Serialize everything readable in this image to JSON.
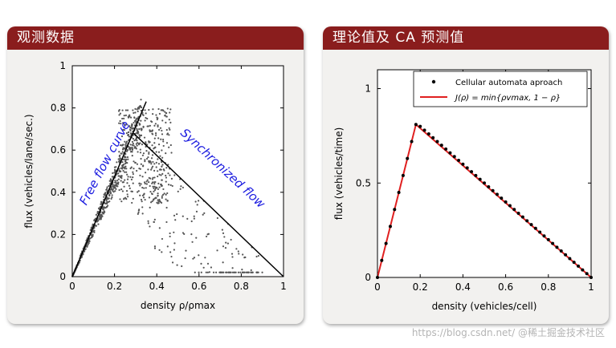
{
  "panels": {
    "left_title": "观测数据",
    "right_title": "理论值及 CA 预测值"
  },
  "chart_data": [
    {
      "type": "scatter",
      "title": "",
      "xlabel": "density ρ/ρmax",
      "ylabel": "flux (vehicles/lane/sec.)",
      "xlim": [
        0,
        1
      ],
      "ylim": [
        0,
        1
      ],
      "xticks": [
        "0",
        "0.2",
        "0.4",
        "0.6",
        "0.8",
        "1"
      ],
      "yticks": [
        "0",
        "0.2",
        "0.4",
        "0.6",
        "0.8",
        "1"
      ],
      "grid": false,
      "scatter_description_points": "observed flow-density measurements, dense band along free-flow line up to density ~0.35 then scattered below synchronized-flow line",
      "series": [
        {
          "name": "Free flow curve",
          "type": "line",
          "x": [
            0,
            0.35
          ],
          "y": [
            0,
            0.83
          ]
        },
        {
          "name": "Synchronized flow",
          "type": "line",
          "x": [
            0.29,
            1.0
          ],
          "y": [
            0.68,
            0
          ]
        }
      ],
      "annotations": [
        "Free flow curve",
        "Synchronized flow"
      ],
      "colors": {
        "points": "#555555",
        "lines": "#000000",
        "annotation": "#1a1adf"
      }
    },
    {
      "type": "line",
      "title": "",
      "xlabel": "density (vehicles/cell)",
      "ylabel": "flux (vehicles/time)",
      "xlim": [
        0,
        1
      ],
      "ylim": [
        0,
        1.1
      ],
      "xticks": [
        "0",
        "0.2",
        "0.4",
        "0.6",
        "0.8",
        "1"
      ],
      "yticks": [
        "0",
        "0.5",
        "1"
      ],
      "grid": false,
      "legend_position": "top-right",
      "series": [
        {
          "name": "Cellular automata aproach",
          "type": "scatter",
          "x": [
            0,
            0.02,
            0.04,
            0.06,
            0.08,
            0.1,
            0.12,
            0.14,
            0.16,
            0.18,
            0.2,
            0.22,
            0.24,
            0.26,
            0.28,
            0.3,
            0.32,
            0.34,
            0.36,
            0.38,
            0.4,
            0.42,
            0.44,
            0.46,
            0.48,
            0.5,
            0.52,
            0.54,
            0.56,
            0.58,
            0.6,
            0.62,
            0.64,
            0.66,
            0.68,
            0.7,
            0.72,
            0.74,
            0.76,
            0.78,
            0.8,
            0.82,
            0.84,
            0.86,
            0.88,
            0.9,
            0.92,
            0.94,
            0.96,
            0.98,
            1.0
          ],
          "y": [
            0,
            0.09,
            0.18,
            0.27,
            0.36,
            0.45,
            0.54,
            0.63,
            0.72,
            0.81,
            0.8,
            0.78,
            0.76,
            0.74,
            0.72,
            0.7,
            0.68,
            0.66,
            0.64,
            0.62,
            0.6,
            0.58,
            0.56,
            0.54,
            0.52,
            0.5,
            0.48,
            0.46,
            0.44,
            0.42,
            0.4,
            0.38,
            0.36,
            0.34,
            0.32,
            0.3,
            0.28,
            0.26,
            0.24,
            0.22,
            0.2,
            0.18,
            0.16,
            0.14,
            0.12,
            0.1,
            0.08,
            0.06,
            0.04,
            0.02,
            0
          ]
        },
        {
          "name": "J(ρ) = min{ρvmax, 1 − ρ}",
          "type": "line",
          "x": [
            0,
            0.18,
            1.0
          ],
          "y": [
            0,
            0.81,
            0
          ]
        }
      ],
      "colors": {
        "dots": "#000000",
        "line": "#e02020"
      }
    }
  ],
  "watermark": "https://blog.csdn.net/  @稀土掘金技术社区"
}
